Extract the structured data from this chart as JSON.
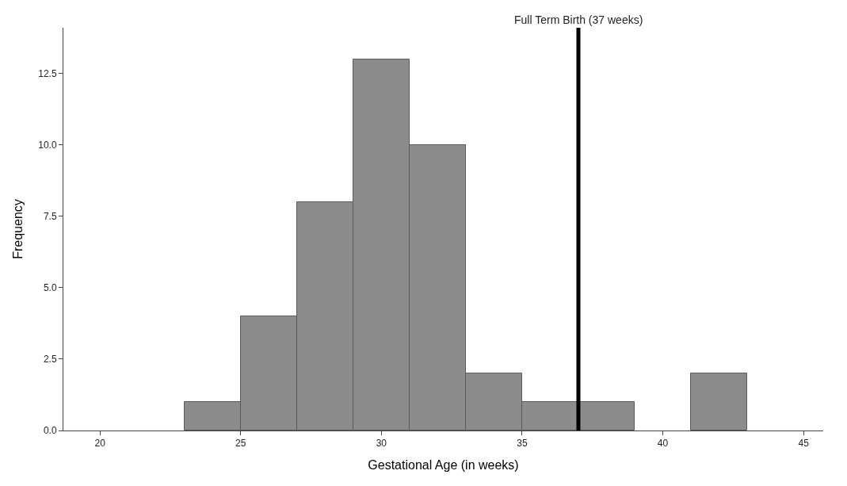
{
  "chart_data": {
    "type": "histogram",
    "xlabel": "Gestational Age (in weeks)",
    "ylabel": "Frequency",
    "bins": [
      23,
      25,
      27,
      29,
      31,
      33,
      35,
      37,
      39,
      41,
      43
    ],
    "values": [
      1,
      4,
      8,
      13,
      10,
      2,
      1,
      1,
      0,
      2
    ],
    "color": "#8c8c8c",
    "xlim": [
      18.7,
      45.7
    ],
    "xticks": [
      20,
      25,
      30,
      35,
      40,
      45
    ],
    "ylim": [
      0,
      14.1
    ],
    "yticks": [
      {
        "value": 0,
        "label": "0.0"
      },
      {
        "value": 2.5,
        "label": "2.5"
      },
      {
        "value": 5,
        "label": "5.0"
      },
      {
        "value": 7.5,
        "label": "7.5"
      },
      {
        "value": 10,
        "label": "10.0"
      },
      {
        "value": 12.5,
        "label": "12.5"
      }
    ],
    "ref_lines": [
      {
        "axis": "x",
        "value": 37,
        "label": "Full Term Birth (37 weeks)",
        "color": "#000000",
        "line_style": "solid"
      }
    ]
  }
}
